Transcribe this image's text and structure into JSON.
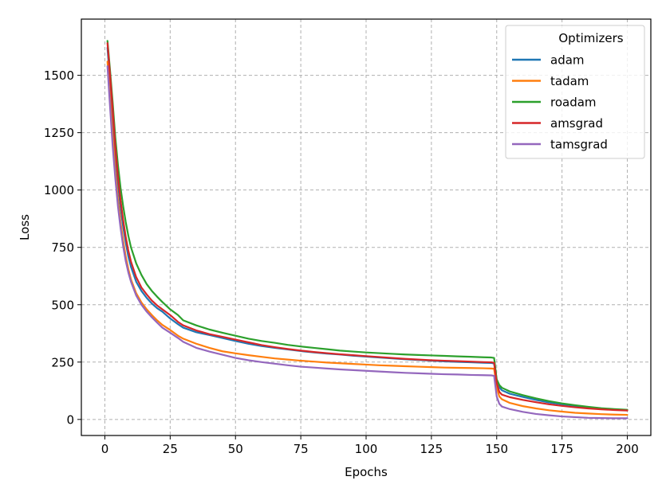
{
  "chart_data": {
    "type": "line",
    "title": "",
    "xlabel": "Epochs",
    "ylabel": "Loss",
    "xlim": [
      -9,
      209
    ],
    "ylim": [
      -70,
      1745
    ],
    "xticks": [
      0,
      25,
      50,
      75,
      100,
      125,
      150,
      175,
      200
    ],
    "yticks": [
      0,
      250,
      500,
      750,
      1000,
      1250,
      1500
    ],
    "grid": true,
    "legend": {
      "title": "Optimizers",
      "position": "top-right"
    },
    "series": [
      {
        "name": "adam",
        "color": "#1f77b4",
        "points": [
          [
            1,
            1620
          ],
          [
            2,
            1470
          ],
          [
            3,
            1320
          ],
          [
            4,
            1160
          ],
          [
            5,
            1030
          ],
          [
            6,
            925
          ],
          [
            7,
            840
          ],
          [
            8,
            770
          ],
          [
            9,
            710
          ],
          [
            10,
            665
          ],
          [
            12,
            600
          ],
          [
            14,
            560
          ],
          [
            16,
            530
          ],
          [
            18,
            505
          ],
          [
            20,
            485
          ],
          [
            22,
            470
          ],
          [
            25,
            440
          ],
          [
            28,
            415
          ],
          [
            30,
            400
          ],
          [
            35,
            380
          ],
          [
            40,
            368
          ],
          [
            45,
            355
          ],
          [
            50,
            342
          ],
          [
            55,
            330
          ],
          [
            60,
            320
          ],
          [
            65,
            312
          ],
          [
            70,
            305
          ],
          [
            75,
            298
          ],
          [
            80,
            292
          ],
          [
            85,
            287
          ],
          [
            90,
            283
          ],
          [
            95,
            278
          ],
          [
            100,
            274
          ],
          [
            105,
            270
          ],
          [
            110,
            266
          ],
          [
            115,
            262
          ],
          [
            120,
            259
          ],
          [
            125,
            256
          ],
          [
            130,
            253
          ],
          [
            135,
            251
          ],
          [
            140,
            249
          ],
          [
            145,
            247
          ],
          [
            148,
            246
          ],
          [
            149,
            244
          ],
          [
            150,
            170
          ],
          [
            151,
            140
          ],
          [
            152,
            127
          ],
          [
            155,
            112
          ],
          [
            160,
            98
          ],
          [
            165,
            85
          ],
          [
            170,
            74
          ],
          [
            175,
            66
          ],
          [
            180,
            59
          ],
          [
            185,
            53
          ],
          [
            190,
            48
          ],
          [
            195,
            43
          ],
          [
            200,
            40
          ]
        ]
      },
      {
        "name": "tadam",
        "color": "#ff7f0e",
        "points": [
          [
            1,
            1560
          ],
          [
            2,
            1390
          ],
          [
            3,
            1230
          ],
          [
            4,
            1080
          ],
          [
            5,
            960
          ],
          [
            6,
            860
          ],
          [
            7,
            780
          ],
          [
            8,
            710
          ],
          [
            9,
            655
          ],
          [
            10,
            610
          ],
          [
            12,
            550
          ],
          [
            14,
            510
          ],
          [
            16,
            480
          ],
          [
            18,
            455
          ],
          [
            20,
            432
          ],
          [
            22,
            412
          ],
          [
            25,
            390
          ],
          [
            28,
            365
          ],
          [
            30,
            352
          ],
          [
            35,
            330
          ],
          [
            40,
            312
          ],
          [
            45,
            297
          ],
          [
            50,
            288
          ],
          [
            55,
            280
          ],
          [
            60,
            273
          ],
          [
            65,
            266
          ],
          [
            70,
            261
          ],
          [
            75,
            256
          ],
          [
            80,
            252
          ],
          [
            85,
            248
          ],
          [
            90,
            245
          ],
          [
            95,
            242
          ],
          [
            100,
            239
          ],
          [
            105,
            236
          ],
          [
            110,
            234
          ],
          [
            115,
            232
          ],
          [
            120,
            230
          ],
          [
            125,
            228
          ],
          [
            130,
            226
          ],
          [
            135,
            225
          ],
          [
            140,
            224
          ],
          [
            145,
            223
          ],
          [
            148,
            222
          ],
          [
            149,
            221
          ],
          [
            150,
            140
          ],
          [
            151,
            100
          ],
          [
            152,
            88
          ],
          [
            155,
            72
          ],
          [
            160,
            58
          ],
          [
            165,
            48
          ],
          [
            170,
            40
          ],
          [
            175,
            34
          ],
          [
            180,
            29
          ],
          [
            185,
            26
          ],
          [
            190,
            23
          ],
          [
            195,
            21
          ],
          [
            200,
            20
          ]
        ]
      },
      {
        "name": "roadam",
        "color": "#2ca02c",
        "points": [
          [
            1,
            1650
          ],
          [
            2,
            1520
          ],
          [
            3,
            1380
          ],
          [
            4,
            1230
          ],
          [
            5,
            1110
          ],
          [
            6,
            1010
          ],
          [
            7,
            930
          ],
          [
            8,
            860
          ],
          [
            9,
            800
          ],
          [
            10,
            750
          ],
          [
            12,
            680
          ],
          [
            14,
            630
          ],
          [
            16,
            590
          ],
          [
            18,
            560
          ],
          [
            20,
            535
          ],
          [
            22,
            512
          ],
          [
            25,
            480
          ],
          [
            28,
            455
          ],
          [
            30,
            432
          ],
          [
            35,
            410
          ],
          [
            40,
            392
          ],
          [
            45,
            378
          ],
          [
            50,
            365
          ],
          [
            55,
            352
          ],
          [
            60,
            342
          ],
          [
            65,
            334
          ],
          [
            70,
            325
          ],
          [
            75,
            318
          ],
          [
            80,
            312
          ],
          [
            85,
            306
          ],
          [
            90,
            300
          ],
          [
            95,
            296
          ],
          [
            100,
            292
          ],
          [
            105,
            289
          ],
          [
            110,
            286
          ],
          [
            115,
            283
          ],
          [
            120,
            281
          ],
          [
            125,
            279
          ],
          [
            130,
            277
          ],
          [
            135,
            275
          ],
          [
            140,
            273
          ],
          [
            145,
            271
          ],
          [
            148,
            270
          ],
          [
            149,
            268
          ],
          [
            150,
            175
          ],
          [
            151,
            150
          ],
          [
            152,
            138
          ],
          [
            155,
            122
          ],
          [
            160,
            106
          ],
          [
            165,
            92
          ],
          [
            170,
            80
          ],
          [
            175,
            70
          ],
          [
            180,
            62
          ],
          [
            185,
            55
          ],
          [
            190,
            49
          ],
          [
            195,
            45
          ],
          [
            200,
            42
          ]
        ]
      },
      {
        "name": "amsgrad",
        "color": "#d62728",
        "points": [
          [
            1,
            1640
          ],
          [
            2,
            1500
          ],
          [
            3,
            1350
          ],
          [
            4,
            1190
          ],
          [
            5,
            1060
          ],
          [
            6,
            955
          ],
          [
            7,
            870
          ],
          [
            8,
            795
          ],
          [
            9,
            735
          ],
          [
            10,
            688
          ],
          [
            12,
            620
          ],
          [
            14,
            575
          ],
          [
            16,
            545
          ],
          [
            18,
            518
          ],
          [
            20,
            497
          ],
          [
            22,
            480
          ],
          [
            25,
            455
          ],
          [
            28,
            425
          ],
          [
            30,
            410
          ],
          [
            35,
            388
          ],
          [
            40,
            372
          ],
          [
            45,
            360
          ],
          [
            50,
            348
          ],
          [
            55,
            336
          ],
          [
            60,
            324
          ],
          [
            65,
            315
          ],
          [
            70,
            307
          ],
          [
            75,
            300
          ],
          [
            80,
            294
          ],
          [
            85,
            289
          ],
          [
            90,
            284
          ],
          [
            95,
            280
          ],
          [
            100,
            276
          ],
          [
            105,
            272
          ],
          [
            110,
            268
          ],
          [
            115,
            264
          ],
          [
            120,
            261
          ],
          [
            125,
            258
          ],
          [
            130,
            256
          ],
          [
            135,
            254
          ],
          [
            140,
            252
          ],
          [
            145,
            250
          ],
          [
            148,
            249
          ],
          [
            149,
            247
          ],
          [
            150,
            160
          ],
          [
            151,
            120
          ],
          [
            152,
            108
          ],
          [
            155,
            97
          ],
          [
            160,
            85
          ],
          [
            165,
            75
          ],
          [
            170,
            66
          ],
          [
            175,
            59
          ],
          [
            180,
            53
          ],
          [
            185,
            48
          ],
          [
            190,
            44
          ],
          [
            195,
            41
          ],
          [
            200,
            39
          ]
        ]
      },
      {
        "name": "tamsgrad",
        "color": "#9467bd",
        "points": [
          [
            1,
            1540
          ],
          [
            2,
            1360
          ],
          [
            3,
            1190
          ],
          [
            4,
            1050
          ],
          [
            5,
            930
          ],
          [
            6,
            835
          ],
          [
            7,
            755
          ],
          [
            8,
            690
          ],
          [
            9,
            640
          ],
          [
            10,
            600
          ],
          [
            12,
            540
          ],
          [
            14,
            500
          ],
          [
            16,
            470
          ],
          [
            18,
            445
          ],
          [
            20,
            422
          ],
          [
            22,
            400
          ],
          [
            25,
            378
          ],
          [
            28,
            355
          ],
          [
            30,
            338
          ],
          [
            35,
            312
          ],
          [
            40,
            296
          ],
          [
            45,
            282
          ],
          [
            50,
            268
          ],
          [
            55,
            258
          ],
          [
            60,
            250
          ],
          [
            65,
            243
          ],
          [
            70,
            236
          ],
          [
            75,
            230
          ],
          [
            80,
            226
          ],
          [
            85,
            222
          ],
          [
            90,
            218
          ],
          [
            95,
            215
          ],
          [
            100,
            212
          ],
          [
            105,
            209
          ],
          [
            110,
            206
          ],
          [
            115,
            203
          ],
          [
            120,
            201
          ],
          [
            125,
            199
          ],
          [
            130,
            197
          ],
          [
            135,
            196
          ],
          [
            140,
            194
          ],
          [
            145,
            193
          ],
          [
            148,
            192
          ],
          [
            149,
            190
          ],
          [
            150,
            100
          ],
          [
            151,
            68
          ],
          [
            152,
            56
          ],
          [
            155,
            45
          ],
          [
            160,
            33
          ],
          [
            165,
            24
          ],
          [
            170,
            18
          ],
          [
            175,
            13
          ],
          [
            180,
            10
          ],
          [
            185,
            7
          ],
          [
            190,
            6
          ],
          [
            195,
            5
          ],
          [
            200,
            5
          ]
        ]
      }
    ]
  }
}
